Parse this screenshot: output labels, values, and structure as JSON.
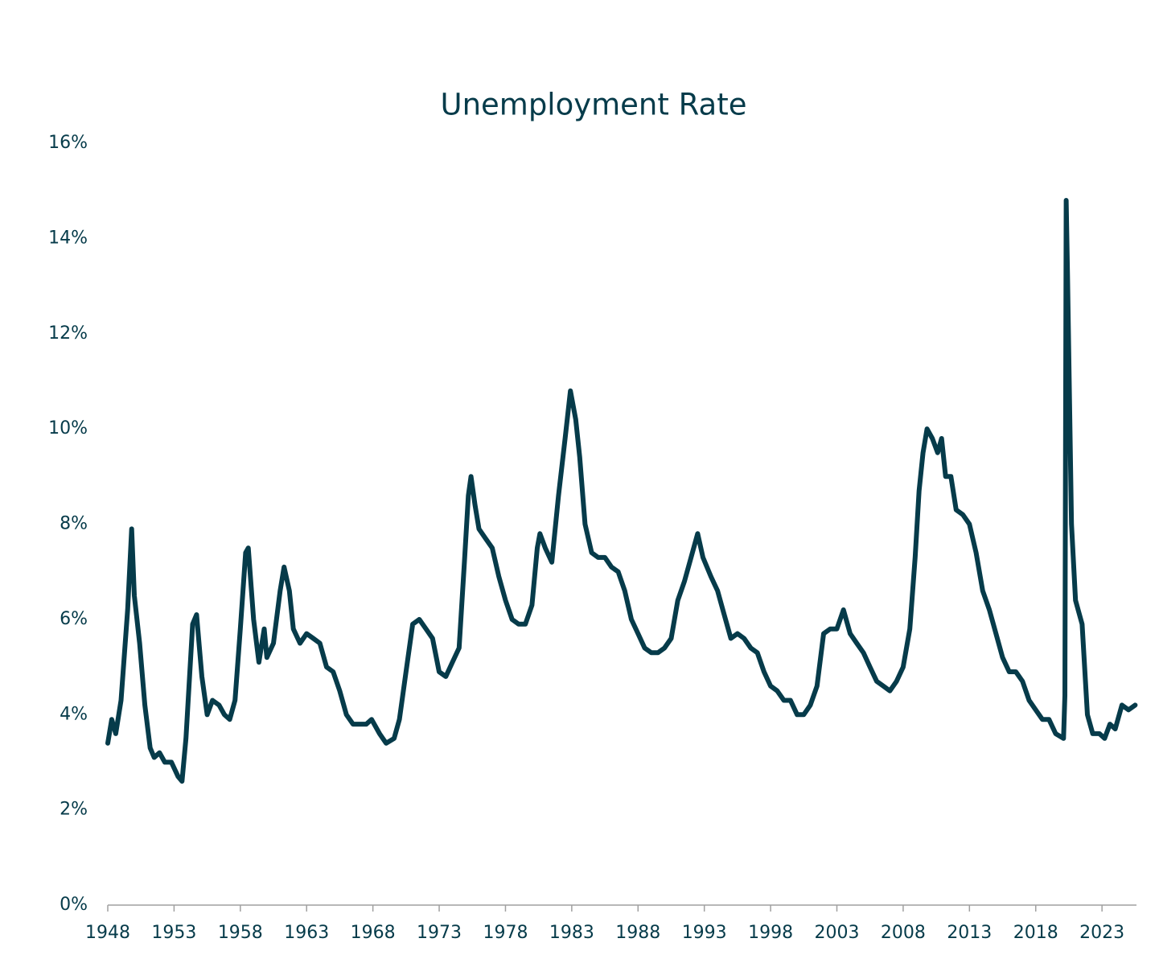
{
  "chart_data": {
    "type": "line",
    "title": "Unemployment Rate",
    "color": "#063b4a",
    "x": [
      1948.0,
      1948.3,
      1948.6,
      1949.0,
      1949.5,
      1949.8,
      1950.0,
      1950.4,
      1950.8,
      1951.2,
      1951.5,
      1951.9,
      1952.3,
      1952.8,
      1953.3,
      1953.6,
      1953.9,
      1954.4,
      1954.7,
      1955.1,
      1955.5,
      1955.9,
      1956.4,
      1956.8,
      1957.2,
      1957.6,
      1958.0,
      1958.4,
      1958.6,
      1959.0,
      1959.4,
      1959.8,
      1960.0,
      1960.5,
      1961.0,
      1961.3,
      1961.7,
      1962.0,
      1962.5,
      1963.0,
      1963.5,
      1964.0,
      1964.5,
      1965.0,
      1965.5,
      1966.0,
      1966.5,
      1967.0,
      1967.5,
      1967.9,
      1968.5,
      1969.0,
      1969.6,
      1970.0,
      1970.5,
      1971.0,
      1971.5,
      1972.0,
      1972.5,
      1973.0,
      1973.5,
      1974.0,
      1974.5,
      1974.9,
      1975.2,
      1975.4,
      1975.7,
      1976.0,
      1976.5,
      1977.0,
      1977.5,
      1978.0,
      1978.5,
      1979.0,
      1979.5,
      1980.0,
      1980.4,
      1980.6,
      1981.0,
      1981.5,
      1982.0,
      1982.5,
      1982.9,
      1983.3,
      1983.6,
      1984.0,
      1984.5,
      1985.0,
      1985.5,
      1986.0,
      1986.5,
      1987.0,
      1987.5,
      1988.0,
      1988.5,
      1989.0,
      1989.5,
      1990.0,
      1990.5,
      1991.0,
      1991.5,
      1992.0,
      1992.5,
      1992.9,
      1993.5,
      1994.0,
      1994.5,
      1995.0,
      1995.5,
      1996.0,
      1996.5,
      1997.0,
      1997.5,
      1998.0,
      1998.5,
      1999.0,
      1999.5,
      2000.0,
      2000.5,
      2001.0,
      2001.5,
      2002.0,
      2002.5,
      2003.0,
      2003.5,
      2004.0,
      2004.5,
      2005.0,
      2005.5,
      2006.0,
      2006.5,
      2007.0,
      2007.5,
      2008.0,
      2008.5,
      2008.9,
      2009.2,
      2009.5,
      2009.8,
      2010.2,
      2010.6,
      2010.9,
      2011.2,
      2011.6,
      2012.0,
      2012.5,
      2013.0,
      2013.5,
      2014.0,
      2014.5,
      2015.0,
      2015.5,
      2016.0,
      2016.5,
      2017.0,
      2017.5,
      2018.0,
      2018.5,
      2019.0,
      2019.5,
      2020.1,
      2020.2,
      2020.3,
      2020.4,
      2020.7,
      2021.0,
      2021.5,
      2021.9,
      2022.3,
      2022.8,
      2023.2,
      2023.6,
      2024.0,
      2024.5,
      2025.0,
      2025.5
    ],
    "values": [
      3.4,
      3.9,
      3.6,
      4.3,
      6.2,
      7.9,
      6.5,
      5.5,
      4.2,
      3.3,
      3.1,
      3.2,
      3.0,
      3.0,
      2.7,
      2.6,
      3.5,
      5.9,
      6.1,
      4.8,
      4.0,
      4.3,
      4.2,
      4.0,
      3.9,
      4.3,
      5.8,
      7.4,
      7.5,
      6.0,
      5.1,
      5.8,
      5.2,
      5.5,
      6.6,
      7.1,
      6.6,
      5.8,
      5.5,
      5.7,
      5.6,
      5.5,
      5.0,
      4.9,
      4.5,
      4.0,
      3.8,
      3.8,
      3.8,
      3.9,
      3.6,
      3.4,
      3.5,
      3.9,
      4.9,
      5.9,
      6.0,
      5.8,
      5.6,
      4.9,
      4.8,
      5.1,
      5.4,
      7.2,
      8.6,
      9.0,
      8.4,
      7.9,
      7.7,
      7.5,
      6.9,
      6.4,
      6.0,
      5.9,
      5.9,
      6.3,
      7.5,
      7.8,
      7.5,
      7.2,
      8.6,
      9.8,
      10.8,
      10.2,
      9.4,
      8.0,
      7.4,
      7.3,
      7.3,
      7.1,
      7.0,
      6.6,
      6.0,
      5.7,
      5.4,
      5.3,
      5.3,
      5.4,
      5.6,
      6.4,
      6.8,
      7.3,
      7.8,
      7.3,
      6.9,
      6.6,
      6.1,
      5.6,
      5.7,
      5.6,
      5.4,
      5.3,
      4.9,
      4.6,
      4.5,
      4.3,
      4.3,
      4.0,
      4.0,
      4.2,
      4.6,
      5.7,
      5.8,
      5.8,
      6.2,
      5.7,
      5.5,
      5.3,
      5.0,
      4.7,
      4.6,
      4.5,
      4.7,
      5.0,
      5.8,
      7.3,
      8.7,
      9.5,
      10.0,
      9.8,
      9.5,
      9.8,
      9.0,
      9.0,
      8.3,
      8.2,
      8.0,
      7.4,
      6.6,
      6.2,
      5.7,
      5.2,
      4.9,
      4.9,
      4.7,
      4.3,
      4.1,
      3.9,
      3.9,
      3.6,
      3.5,
      4.4,
      14.8,
      13.2,
      8.0,
      6.4,
      5.9,
      4.0,
      3.6,
      3.6,
      3.5,
      3.8,
      3.7,
      4.2,
      4.1,
      4.2
    ],
    "xlim": [
      1948,
      2025.6
    ],
    "xticks": [
      1948,
      1953,
      1958,
      1963,
      1968,
      1973,
      1978,
      1983,
      1988,
      1993,
      1998,
      2003,
      2008,
      2013,
      2018,
      2023
    ],
    "ylim": [
      0,
      16
    ],
    "yticks": [
      {
        "value": 0,
        "label": "0%"
      },
      {
        "value": 2,
        "label": "2%"
      },
      {
        "value": 4,
        "label": "4%"
      },
      {
        "value": 6,
        "label": "6%"
      },
      {
        "value": 8,
        "label": "8%"
      },
      {
        "value": 10,
        "label": "10%"
      },
      {
        "value": 12,
        "label": "12%"
      },
      {
        "value": 14,
        "label": "14%"
      },
      {
        "value": 16,
        "label": "16%"
      }
    ]
  }
}
